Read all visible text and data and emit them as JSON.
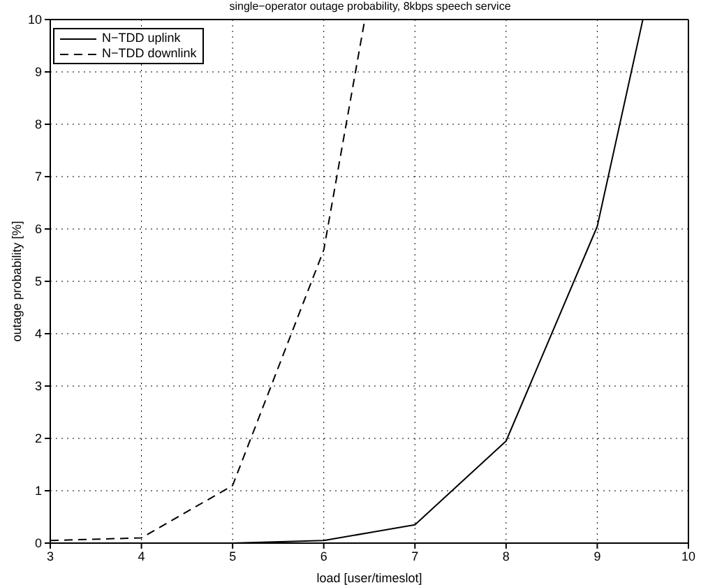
{
  "chart_data": {
    "type": "line",
    "title": "single−operator outage probability, 8kbps speech service",
    "xlabel": "load [user/timeslot]",
    "ylabel": "outage probability [%]",
    "series": [
      {
        "name": "N−TDD uplink",
        "color": "#000000",
        "line_style": "solid",
        "x": [
          3,
          4,
          5,
          6,
          7,
          8,
          9,
          9.5
        ],
        "values": [
          0,
          0,
          0,
          0.05,
          0.35,
          1.95,
          6.05,
          10
        ]
      },
      {
        "name": "N−TDD downlink",
        "color": "#000000",
        "line_style": "dashed",
        "x": [
          3,
          4,
          5,
          6,
          6.45
        ],
        "values": [
          0.05,
          0.1,
          1.1,
          5.6,
          10
        ]
      }
    ],
    "xlim": [
      3,
      10
    ],
    "xticks": [
      3,
      4,
      5,
      6,
      7,
      8,
      9,
      10
    ],
    "ylim": [
      0,
      10
    ],
    "yticks": [
      0,
      1,
      2,
      3,
      4,
      5,
      6,
      7,
      8,
      9,
      10
    ],
    "grid": true,
    "legend": "top left",
    "marker": "none"
  }
}
